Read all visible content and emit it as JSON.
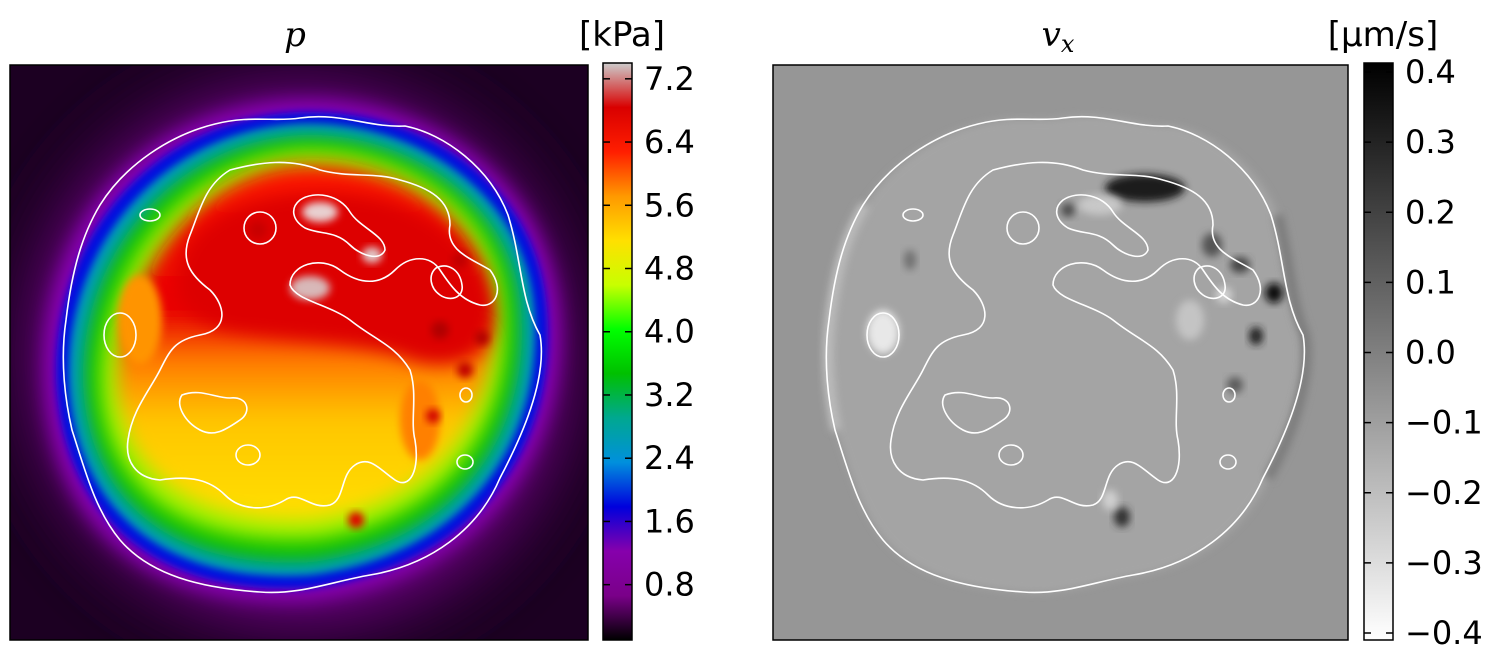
{
  "chart_data": [
    {
      "type": "heatmap",
      "title": "p",
      "colormap": "nipy_spectral-like (black-purple-blue-green-yellow-red-white)",
      "colorbar_label": "[kPa]",
      "colorbar_ticks": [
        "7.2",
        "6.4",
        "5.6",
        "4.8",
        "4.0",
        "3.2",
        "2.4",
        "1.6",
        "0.8"
      ],
      "colorbar_tick_values": [
        7.2,
        6.4,
        5.6,
        4.8,
        4.0,
        3.2,
        2.4,
        1.6,
        0.8
      ],
      "value_range": [
        0.1,
        7.4
      ],
      "background_value": 0.3,
      "cell_outside_value": 1.2,
      "cell_rim_value": 3.2,
      "cell_core_top_value": 6.8,
      "cell_core_bottom_value": 5.2,
      "peak_value": 7.2,
      "colors": {
        "stops": [
          "#000000",
          "#7a0089",
          "#8600ac",
          "#0000dd",
          "#0090dd",
          "#00a890",
          "#00c000",
          "#00ff00",
          "#c8ff00",
          "#ffe000",
          "#ff9900",
          "#ff1e00",
          "#d90000",
          "#cccccc"
        ]
      },
      "grid": false,
      "contour_color": "#ffffff"
    },
    {
      "type": "heatmap",
      "title": "v_x",
      "colormap": "gray_r",
      "colorbar_label": "[µm/s]",
      "colorbar_ticks": [
        "0.4",
        "0.3",
        "0.2",
        "0.1",
        "0.0",
        "−0.1",
        "−0.2",
        "−0.3",
        "−0.4"
      ],
      "colorbar_tick_values": [
        0.4,
        0.3,
        0.2,
        0.1,
        0.0,
        -0.1,
        -0.2,
        -0.3,
        -0.4
      ],
      "value_range": [
        -0.4,
        0.4
      ],
      "background_value": 0.05,
      "cell_inside_value": -0.05,
      "max_value": 0.4,
      "min_value": -0.3,
      "colors": {
        "low": "#ffffff",
        "high": "#000000"
      },
      "grid": false,
      "contour_color": "#ffffff"
    }
  ]
}
